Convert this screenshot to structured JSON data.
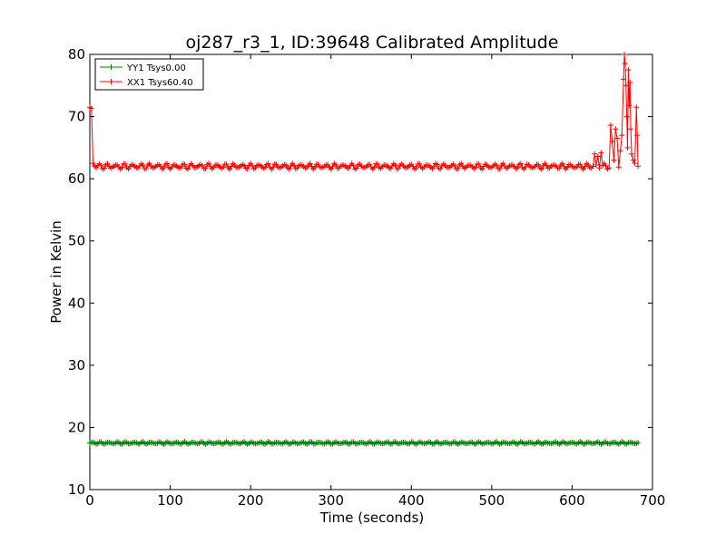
{
  "chart_data": {
    "type": "line",
    "title": "oj287_r3_1, ID:39648 Calibrated Amplitude",
    "xlabel": "Time (seconds)",
    "ylabel": "Power in Kelvin",
    "xlim": [
      0,
      700
    ],
    "ylim": [
      10,
      80
    ],
    "xticks": [
      0,
      100,
      200,
      300,
      400,
      500,
      600,
      700
    ],
    "yticks": [
      10,
      20,
      30,
      40,
      50,
      60,
      70,
      80
    ],
    "grid": false,
    "legend_position": "top-left",
    "series": [
      {
        "name": "YY1 Tsys0.00",
        "color": "#008000",
        "marker": "plus",
        "x_start": 0,
        "x_end": 682,
        "x_step": 2,
        "base": 17.5,
        "ripple": 0.15,
        "points": []
      },
      {
        "name": "XX1 Tsys60.40",
        "color": "#ff0000",
        "marker": "plus",
        "x_start": 0,
        "x_end": 682,
        "x_step": 2,
        "base": 62.0,
        "ripple": 0.35,
        "points": [
          [
            0,
            71.5
          ],
          [
            2,
            71.3
          ],
          [
            4,
            62.5
          ],
          [
            6,
            62.0
          ],
          [
            628,
            64.0
          ],
          [
            632,
            63.6
          ],
          [
            636,
            64.2
          ],
          [
            648,
            68.6
          ],
          [
            650,
            66.0
          ],
          [
            652,
            63.0
          ],
          [
            654,
            68.0
          ],
          [
            656,
            66.5
          ],
          [
            660,
            64.5
          ],
          [
            662,
            67.0
          ],
          [
            664,
            76.0
          ],
          [
            665,
            80.0
          ],
          [
            666,
            78.5
          ],
          [
            667,
            75.0
          ],
          [
            668,
            70.0
          ],
          [
            669,
            65.0
          ],
          [
            670,
            77.5
          ],
          [
            671,
            71.8
          ],
          [
            672,
            75.5
          ],
          [
            673,
            68.0
          ],
          [
            674,
            64.0
          ],
          [
            676,
            63.0
          ],
          [
            678,
            62.5
          ],
          [
            680,
            71.5
          ],
          [
            681,
            67.0
          ],
          [
            682,
            62.0
          ]
        ]
      }
    ]
  }
}
